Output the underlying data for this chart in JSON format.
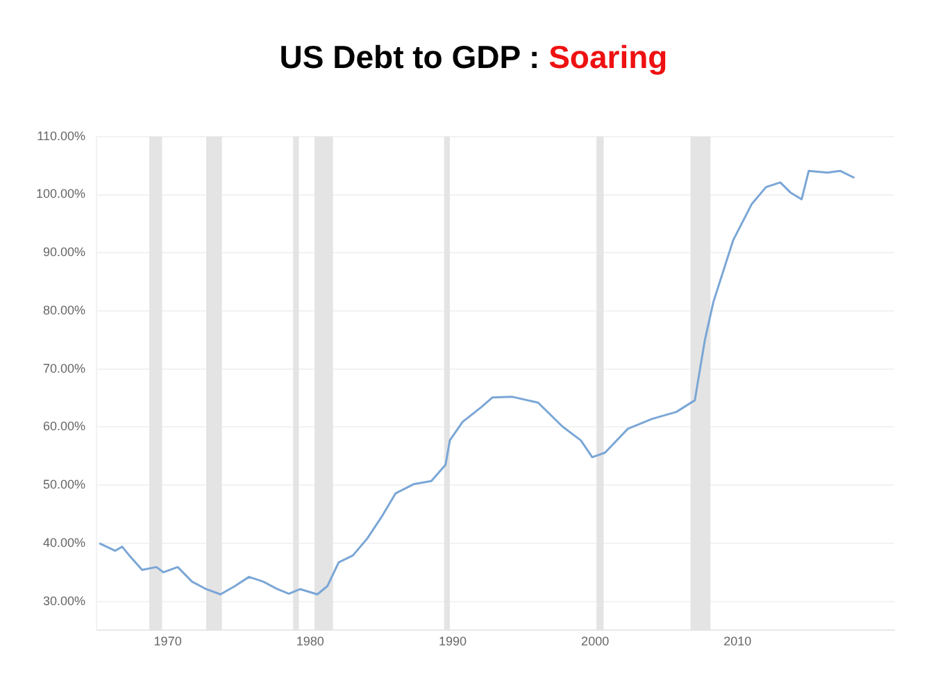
{
  "chart_data": {
    "type": "line",
    "title": "US Debt to GDP :",
    "subtitle": "Soaring",
    "xlim": [
      1965,
      2021
    ],
    "xticks": [
      1970,
      1980,
      1990,
      2000,
      2010
    ],
    "ylim": [
      25,
      110
    ],
    "yticks": [
      {
        "value": 30,
        "label": "30.00%"
      },
      {
        "value": 40,
        "label": "40.00%"
      },
      {
        "value": 50,
        "label": "50.00%"
      },
      {
        "value": 60,
        "label": "60.00%"
      },
      {
        "value": 70,
        "label": "70.00%"
      },
      {
        "value": 80,
        "label": "80.00%"
      },
      {
        "value": 90,
        "label": "90.00%"
      },
      {
        "value": 100,
        "label": "100.00%"
      },
      {
        "value": 110,
        "label": "110.00%"
      }
    ],
    "grid": "y",
    "marker": "none",
    "line_style": "solid",
    "bands": [
      {
        "axis": "x",
        "from": 1968.7,
        "to": 1969.6,
        "color": "#e4e4e4"
      },
      {
        "axis": "x",
        "from": 1972.7,
        "to": 1973.8,
        "color": "#e4e4e4"
      },
      {
        "axis": "x",
        "from": 1978.8,
        "to": 1979.2,
        "color": "#e4e4e4"
      },
      {
        "axis": "x",
        "from": 1980.3,
        "to": 1981.6,
        "color": "#e4e4e4"
      },
      {
        "axis": "x",
        "from": 1989.4,
        "to": 1989.8,
        "color": "#e4e4e4"
      },
      {
        "axis": "x",
        "from": 2000.1,
        "to": 2000.6,
        "color": "#e4e4e4"
      },
      {
        "axis": "x",
        "from": 2006.7,
        "to": 2008.1,
        "color": "#e4e4e4"
      }
    ],
    "series": [
      {
        "color": "#7aa6d6",
        "x": [
          1965.2,
          1966.3,
          1966.8,
          1967.3,
          1968.2,
          1969.2,
          1969.7,
          1970.7,
          1971.7,
          1972.7,
          1973.7,
          1974.7,
          1975.7,
          1976.7,
          1977.7,
          1978.5,
          1979.3,
          1980.5,
          1981.2,
          1982,
          1983,
          1984,
          1985,
          1986,
          1987.3,
          1988.5,
          1989.5,
          1989.8,
          1990.7,
          1992,
          1992.8,
          1994.2,
          1996,
          1997.7,
          1999,
          1999.8,
          2000.7,
          2002.3,
          2004,
          2005.7,
          2007,
          2007.7,
          2008.3,
          2009.7,
          2011,
          2012,
          2013,
          2013.7,
          2014.5,
          2015,
          2016.3,
          2017.2,
          2018.2
        ],
        "values": [
          40.0,
          38.7,
          39.4,
          37.9,
          35.4,
          35.9,
          35.0,
          35.9,
          33.4,
          32.1,
          31.2,
          32.6,
          34.2,
          33.4,
          32.1,
          31.3,
          32.1,
          31.2,
          32.6,
          36.7,
          37.9,
          40.8,
          44.5,
          48.6,
          50.2,
          50.7,
          53.5,
          57.7,
          60.9,
          63.4,
          65.1,
          65.2,
          64.2,
          60.1,
          57.7,
          54.8,
          55.6,
          59.7,
          61.4,
          62.6,
          64.6,
          74.9,
          81.5,
          92.2,
          98.4,
          101.3,
          102.1,
          100.4,
          99.2,
          104.1,
          103.8,
          104.1,
          102.9
        ]
      }
    ]
  }
}
